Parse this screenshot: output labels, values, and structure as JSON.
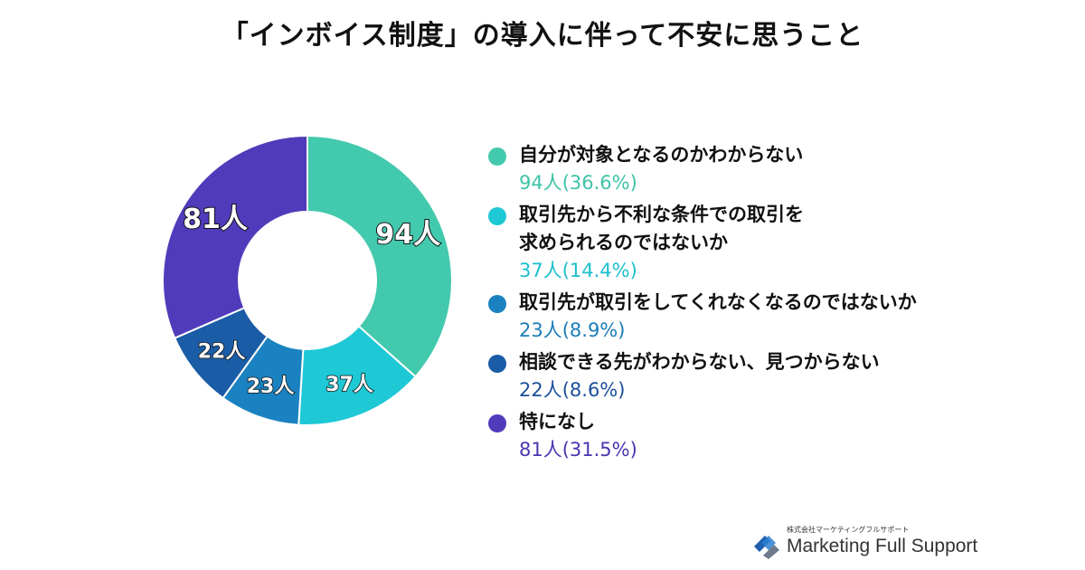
{
  "title": "「インボイス制度」の導入に伴って不安に思うこと",
  "chart_data": {
    "type": "pie",
    "title": "「インボイス制度」の導入に伴って不安に思うこと",
    "unit": "人",
    "slices": [
      {
        "label": "自分が対象となるのかわからない",
        "value": 94,
        "value_label": "94人",
        "legend_value": "94人(36.6%)",
        "percent": 36.6,
        "color": "#43c9ad"
      },
      {
        "label": "取引先から不利な条件での取引を\n求められるのではないか",
        "value": 37,
        "value_label": "37人",
        "legend_value": "37人(14.4%)",
        "percent": 14.4,
        "color": "#1ec8d5"
      },
      {
        "label": "取引先が取引をしてくれなくなるのではないか",
        "value": 23,
        "value_label": "23人",
        "legend_value": "23人(8.9%)",
        "percent": 8.9,
        "color": "#1a82c0"
      },
      {
        "label": "相談できる先がわからない、見つからない",
        "value": 22,
        "value_label": "22人",
        "legend_value": "22人(8.6%)",
        "percent": 8.6,
        "color": "#1a5ca6"
      },
      {
        "label": "特になし",
        "value": 81,
        "value_label": "81人",
        "legend_value": "81人(31.5%)",
        "percent": 31.5,
        "color": "#503bbb"
      }
    ],
    "legend_position": "right"
  },
  "legend_value_colors": [
    "#3fc3a8",
    "#1cbfcc",
    "#1b7db7",
    "#1b4f9a",
    "#4b35b0"
  ],
  "logo": {
    "company_jp": "株式会社マーケティングフルサポート",
    "name": "Marketing Full Support"
  }
}
